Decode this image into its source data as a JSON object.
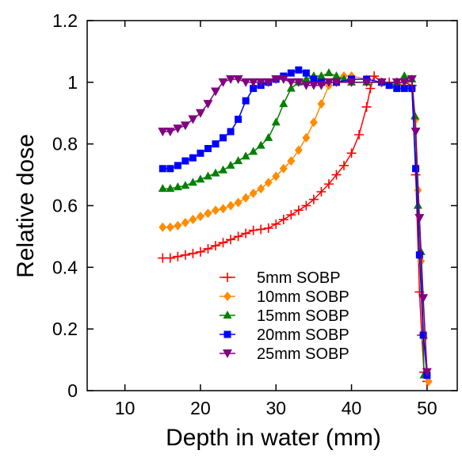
{
  "chart_data": {
    "type": "line",
    "xlabel": "Depth in water (mm)",
    "ylabel": "Relative dose",
    "xlim": [
      5,
      54
    ],
    "ylim": [
      0,
      1.2
    ],
    "xticks": [
      10,
      20,
      30,
      40,
      50
    ],
    "yticks": [
      0,
      0.2,
      0.4,
      0.6,
      0.8,
      1,
      1.2
    ],
    "ytick_labels": [
      "0",
      "0.2",
      "0.4",
      "0.6",
      "0.8",
      "1",
      "1.2"
    ],
    "legend_position": "center",
    "series": [
      {
        "name": "5mm SOBP",
        "color": "#ff0000",
        "marker": "plus",
        "x": [
          15,
          16,
          17,
          18,
          19,
          20,
          21,
          22,
          23,
          24,
          25,
          26,
          27,
          28,
          29,
          30,
          31,
          32,
          33,
          34,
          35,
          36,
          37,
          38,
          39,
          40,
          41,
          42,
          42.5,
          43,
          44,
          45,
          46,
          47,
          48,
          48.5,
          49,
          49.3,
          49.6,
          50
        ],
        "y": [
          0.43,
          0.43,
          0.435,
          0.44,
          0.445,
          0.45,
          0.46,
          0.47,
          0.48,
          0.49,
          0.5,
          0.51,
          0.52,
          0.523,
          0.527,
          0.54,
          0.555,
          0.57,
          0.585,
          0.6,
          0.62,
          0.645,
          0.67,
          0.7,
          0.73,
          0.77,
          0.83,
          0.92,
          0.98,
          1.02,
          1.0,
          1.0,
          1.0,
          1.0,
          0.99,
          0.7,
          0.32,
          0.18,
          0.06,
          0.03
        ]
      },
      {
        "name": "10mm SOBP",
        "color": "#ff8c00",
        "marker": "diamond",
        "x": [
          15,
          16,
          17,
          18,
          19,
          20,
          21,
          22,
          23,
          24,
          25,
          26,
          27,
          28,
          29,
          30,
          31,
          32,
          33,
          34,
          35,
          36,
          37,
          38,
          39,
          40,
          42,
          44,
          46,
          48,
          48.5,
          48.8,
          49.2,
          49.6,
          50.2
        ],
        "y": [
          0.53,
          0.53,
          0.535,
          0.545,
          0.555,
          0.565,
          0.575,
          0.585,
          0.59,
          0.6,
          0.61,
          0.625,
          0.64,
          0.655,
          0.675,
          0.695,
          0.72,
          0.745,
          0.78,
          0.82,
          0.87,
          0.93,
          0.99,
          1.01,
          1.02,
          1.02,
          1.01,
          1.0,
          1.0,
          0.98,
          0.88,
          0.65,
          0.42,
          0.17,
          0.03
        ]
      },
      {
        "name": "15mm SOBP",
        "color": "#008000",
        "marker": "triangle",
        "x": [
          15,
          16,
          17,
          18,
          19,
          20,
          21,
          22,
          23,
          24,
          25,
          26,
          27,
          28,
          29,
          30,
          31,
          32,
          33,
          34,
          35,
          36,
          37,
          38,
          39,
          40,
          42,
          44,
          46,
          47,
          48,
          48.4,
          48.8,
          49.2,
          49.6
        ],
        "y": [
          0.655,
          0.655,
          0.66,
          0.665,
          0.675,
          0.685,
          0.695,
          0.705,
          0.715,
          0.73,
          0.745,
          0.76,
          0.775,
          0.795,
          0.82,
          0.87,
          0.93,
          0.98,
          1.0,
          1.01,
          1.02,
          1.02,
          1.03,
          1.02,
          1.01,
          1.0,
          1.0,
          1.0,
          1.0,
          1.02,
          1.01,
          0.89,
          0.6,
          0.45,
          0.05
        ]
      },
      {
        "name": "20mm SOBP",
        "color": "#0000ff",
        "marker": "square",
        "x": [
          15,
          16,
          17,
          18,
          19,
          20,
          21,
          22,
          23,
          24,
          25,
          26,
          27,
          28,
          29,
          30,
          31,
          32,
          33,
          34,
          35,
          36,
          38,
          40,
          42,
          44,
          45,
          46,
          47,
          48,
          48.5,
          49,
          49.5,
          50
        ],
        "y": [
          0.72,
          0.72,
          0.73,
          0.745,
          0.755,
          0.77,
          0.785,
          0.8,
          0.82,
          0.84,
          0.88,
          0.94,
          0.98,
          0.99,
          1.0,
          1.01,
          1.02,
          1.03,
          1.04,
          1.03,
          1.01,
          1.0,
          1.0,
          1.01,
          1.01,
          1.0,
          0.99,
          0.98,
          0.98,
          0.98,
          0.72,
          0.44,
          0.18,
          0.05
        ]
      },
      {
        "name": "25mm SOBP",
        "color": "#800080",
        "marker": "triangle-down",
        "x": [
          15,
          16,
          17,
          18,
          19,
          20,
          21,
          22,
          23,
          24,
          25,
          26,
          27,
          28,
          29,
          30,
          31,
          32,
          33,
          34,
          35,
          36,
          37,
          38,
          40,
          42,
          44,
          46,
          47,
          48,
          48.5,
          49,
          49.5,
          50
        ],
        "y": [
          0.84,
          0.84,
          0.85,
          0.86,
          0.88,
          0.9,
          0.93,
          0.97,
          1.0,
          1.01,
          1.01,
          1.0,
          1.0,
          1.0,
          1.0,
          1.01,
          1.01,
          1.0,
          1.0,
          0.99,
          0.99,
          0.99,
          1.0,
          1.0,
          1.0,
          1.0,
          1.0,
          1.0,
          1.0,
          1.01,
          0.84,
          0.56,
          0.3,
          0.06
        ]
      }
    ]
  }
}
